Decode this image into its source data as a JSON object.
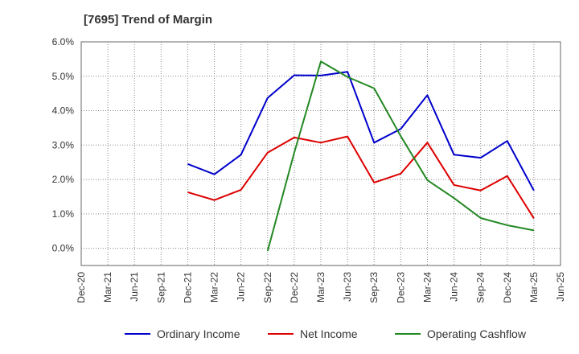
{
  "chart_data": {
    "type": "line",
    "title": "[7695]  Trend of Margin",
    "xlabel": "",
    "ylabel": "",
    "ylim": [
      -0.5,
      6.0
    ],
    "yticks": [
      0.0,
      1.0,
      2.0,
      3.0,
      4.0,
      5.0,
      6.0
    ],
    "ytick_labels": [
      "0.0%",
      "1.0%",
      "2.0%",
      "3.0%",
      "4.0%",
      "5.0%",
      "6.0%"
    ],
    "categories": [
      "Dec-20",
      "Mar-21",
      "Jun-21",
      "Sep-21",
      "Dec-21",
      "Mar-22",
      "Jun-22",
      "Sep-22",
      "Dec-22",
      "Mar-23",
      "Jun-23",
      "Sep-23",
      "Dec-23",
      "Mar-24",
      "Jun-24",
      "Sep-24",
      "Dec-24",
      "Mar-25",
      "Jun-25"
    ],
    "grid": true,
    "legend_position": "bottom",
    "series": [
      {
        "name": "Ordinary Income",
        "color": "#0000cc",
        "values": [
          null,
          null,
          null,
          null,
          2.45,
          2.15,
          2.72,
          4.37,
          5.03,
          5.02,
          5.13,
          3.07,
          3.47,
          4.45,
          2.72,
          2.63,
          3.12,
          1.68,
          null
        ]
      },
      {
        "name": "Net Income",
        "color": "#dd0000",
        "values": [
          null,
          null,
          null,
          null,
          1.63,
          1.4,
          1.7,
          2.78,
          3.22,
          3.07,
          3.25,
          1.91,
          2.17,
          3.07,
          1.84,
          1.68,
          2.1,
          0.87,
          null
        ]
      },
      {
        "name": "Operating Cashflow",
        "color": "#228822",
        "values": [
          null,
          null,
          null,
          null,
          null,
          null,
          null,
          -0.08,
          2.78,
          5.43,
          4.98,
          4.65,
          3.26,
          1.98,
          1.46,
          0.88,
          0.67,
          0.52,
          null
        ]
      }
    ]
  }
}
